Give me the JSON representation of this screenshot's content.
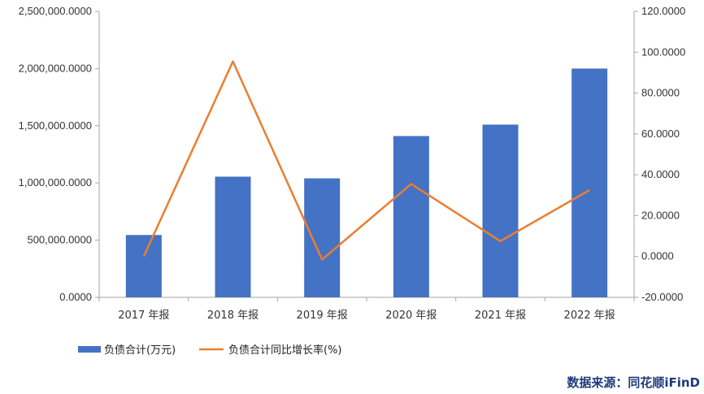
{
  "chart_data": {
    "type": "bar+line",
    "categories": [
      "2017 年报",
      "2018 年报",
      "2019 年报",
      "2020 年报",
      "2021 年报",
      "2022 年报"
    ],
    "series": [
      {
        "name": "负债合计(万元)",
        "type": "bar",
        "axis": "left",
        "color": "#4472c4",
        "values": [
          545000,
          1055000,
          1040000,
          1410000,
          1510000,
          2000000
        ]
      },
      {
        "name": "负债合计同比增长率(%)",
        "type": "line",
        "axis": "right",
        "color": "#ed7d31",
        "values": [
          0,
          95.5,
          -1.5,
          35.5,
          7.5,
          32.5
        ]
      }
    ],
    "y_left": {
      "ylim": [
        0,
        2500000
      ],
      "ticks": [
        0,
        500000,
        1000000,
        1500000,
        2000000,
        2500000
      ],
      "tick_labels": [
        "0.0000",
        "500,000.0000",
        "1,000,000.0000",
        "1,500,000.0000",
        "2,000,000.0000",
        "2,500,000.0000"
      ]
    },
    "y_right": {
      "ylim": [
        -20,
        120
      ],
      "ticks": [
        -20,
        0,
        20,
        40,
        60,
        80,
        100,
        120
      ],
      "tick_labels": [
        "-20.0000",
        "0.0000",
        "20.0000",
        "40.0000",
        "60.0000",
        "80.0000",
        "100.0000",
        "120.0000"
      ]
    },
    "legend_position": "bottom-left",
    "grid": false
  },
  "source_label": "数据来源：同花顺iFinD"
}
